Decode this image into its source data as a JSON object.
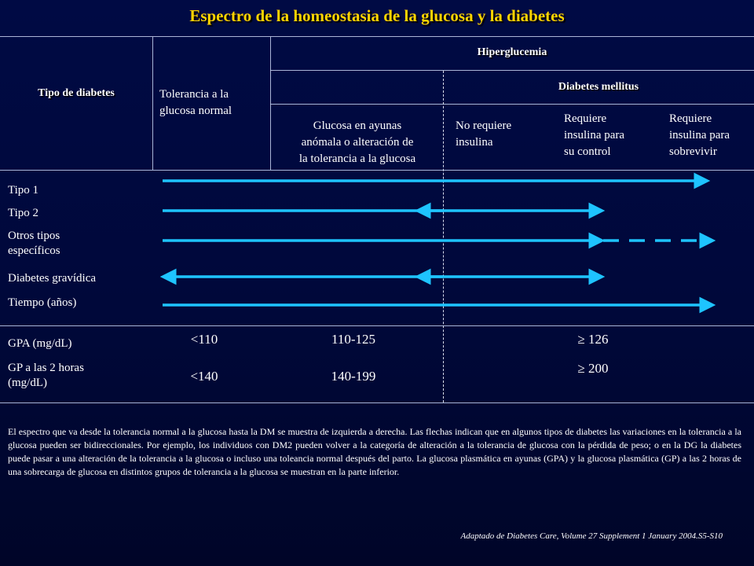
{
  "title": "Espectro de la homeostasia de la glucosa y la diabetes",
  "header": {
    "tipo_diabetes": "Tipo de diabetes",
    "hiperglucemia": "Hiperglucemia",
    "diabetes_mellitus": "Diabetes mellitus",
    "tolerancia_normal": [
      "Tolerancia a la",
      "glucosa normal"
    ],
    "glucosa_anomala": [
      "Glucosa en ayunas",
      "anómala o alteración de",
      "la tolerancia a la glucosa"
    ],
    "no_requiere": [
      "No requiere",
      "insulina"
    ],
    "requiere_control": [
      "Requiere",
      "insulina para",
      "su control"
    ],
    "requiere_sobrevivir": [
      "Requiere",
      "insulina para",
      "sobrevivir"
    ]
  },
  "rows": {
    "tipo1": "Tipo 1",
    "tipo2": "Tipo 2",
    "otros": [
      "Otros tipos",
      "específicos"
    ],
    "gravidica": "Diabetes gravídica",
    "tiempo": "Tiempo (años)"
  },
  "measures": {
    "gpa_label": "GPA (mg/dL)",
    "gp2h_label": [
      "GP a las 2 horas",
      "(mg/dL)"
    ],
    "gpa_values": [
      "<110",
      "110-125",
      "≥ 126"
    ],
    "gp2h_values": [
      "<140",
      "140-199",
      "≥ 200"
    ]
  },
  "note": "El espectro que va desde la tolerancia normal a la glucosa hasta la DM se muestra de izquierda a derecha. Las flechas indican que en algunos tipos de diabetes las variaciones en la tolerancia a la glucosa pueden ser bidireccionales. Por ejemplo, los individuos con DM2 pueden volver a la categoría de alteración a la tolerancia de glucosa con la pérdida de peso; o en la DG la diabetes puede pasar a una alteración de la tolerancia a la glucosa o incluso una toleancia normal después del parto. La glucosa plasmática en ayunas (GPA) y la glucosa plasmática (GP) a las 2 horas de una sobrecarga de glucosa en distintos grupos de tolerancia a la glucosa se muestran en la parte inferior.",
  "source": "Adaptado de Diabetes Care, Volume 27 Supplement 1 January 2004.S5-S10",
  "colors": {
    "background": "#000a44",
    "title": "#ffd400",
    "arrow": "#1ec4ff",
    "grid": "#c8d2f0"
  }
}
